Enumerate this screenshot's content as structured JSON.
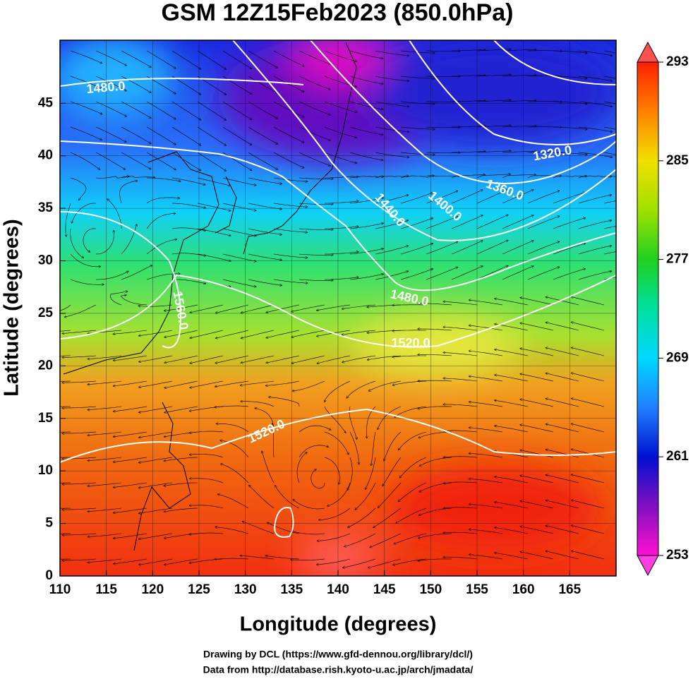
{
  "title": "GSM 12Z15Feb2023 (850.0hPa)",
  "x_axis": {
    "label": "Longitude (degrees)",
    "range": [
      110,
      170
    ],
    "ticks": [
      110,
      115,
      120,
      125,
      130,
      135,
      140,
      145,
      150,
      155,
      160,
      165
    ]
  },
  "y_axis": {
    "label": "Latitude  (degrees)",
    "range": [
      0,
      51
    ],
    "ticks": [
      0,
      5,
      10,
      15,
      20,
      25,
      30,
      35,
      40,
      45
    ]
  },
  "colorbar": {
    "range": [
      253,
      293
    ],
    "ticks": [
      253,
      261,
      269,
      277,
      285,
      293
    ]
  },
  "contour_labels": [
    "1480.0",
    "1320.0",
    "1360.0",
    "1440.0",
    "1400.0",
    "1480.0",
    "1520.0",
    "1520.0",
    "1560.0"
  ],
  "credits": [
    "Drawing by DCL (https://www.gfd-dennou.org/library/dcl/)",
    "Data from http://database.rish.kyoto-u.ac.jp/arch/jmadata/"
  ]
}
